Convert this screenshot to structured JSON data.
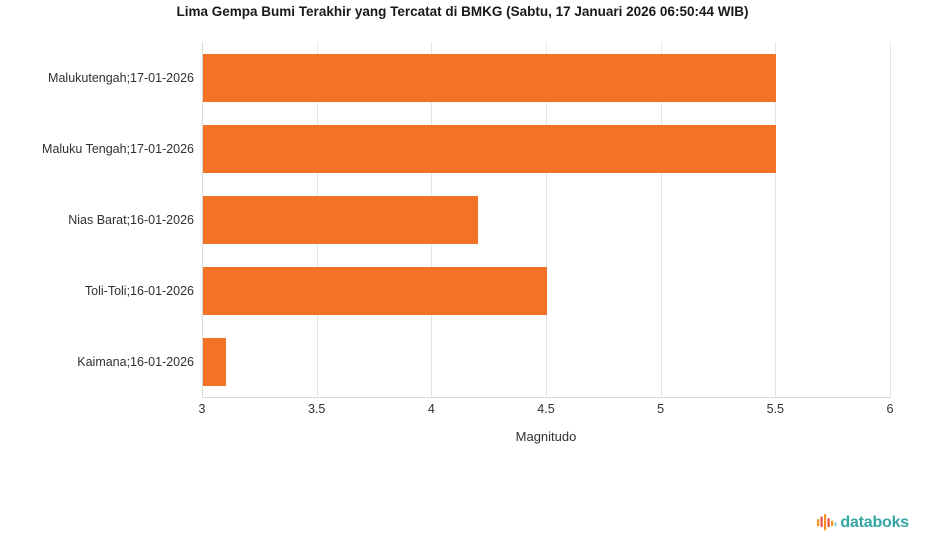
{
  "chart_data": {
    "type": "bar",
    "orientation": "horizontal",
    "title": "Lima Gempa Bumi Terakhir yang Tercatat di BMKG (Sabtu, 17 Januari 2026 06:50:44 WIB)",
    "categories": [
      "Malukutengah;17-01-2026",
      "Maluku Tengah;17-01-2026",
      "Nias Barat;16-01-2026",
      "Toli-Toli;16-01-2026",
      "Kaimana;16-01-2026"
    ],
    "values": [
      5.5,
      5.5,
      4.2,
      4.5,
      3.1
    ],
    "xlabel": "Magnitudo",
    "xlim": [
      3,
      6
    ],
    "xticks": [
      3,
      3.5,
      4,
      4.5,
      5,
      5.5,
      6
    ],
    "grid": "vertical-gridlines-on",
    "legend": "none",
    "bar_color": "#f27226"
  },
  "colors": {
    "bar": "#f27226",
    "gridline": "#e6e6e6",
    "axis_line": "#d9d9d9",
    "label_text": "#303030",
    "title_text": "#1a1a1a",
    "logo_text": "#35a5a3",
    "logo_orange": "#f6921e",
    "logo_red": "#e8503a",
    "logo_teal": "#7fcfc9"
  },
  "footer": {
    "logo_text": "databoks"
  }
}
